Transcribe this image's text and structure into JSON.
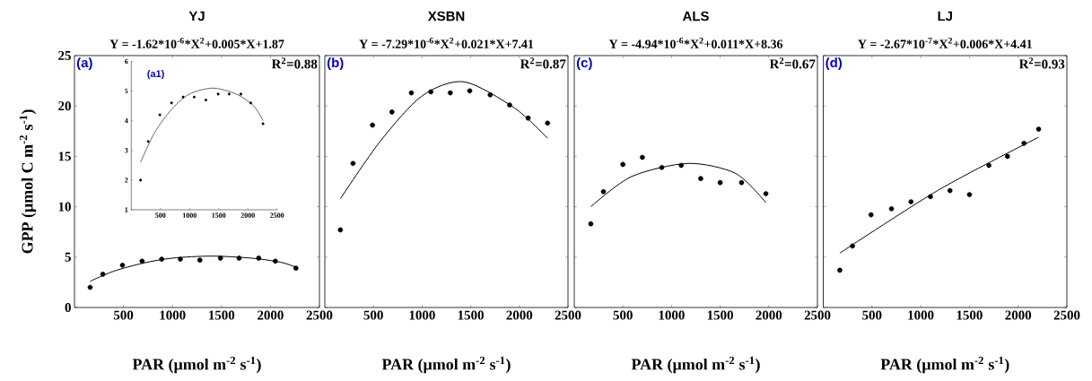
{
  "chart_data": [
    {
      "type": "scatter",
      "title": "YJ",
      "subtitle": "Y = -1.62*10$^{-6}$*X$^{2}$+0.005*X+1.87",
      "xlabel": "PAR (µmol m$^{-2}$ s$^{-1}$)",
      "ylabel": "GPP (µmol C m$^{-2}$ s$^{-1}$)",
      "annotations": [
        "(a)",
        "R$^{2}$=0.88"
      ],
      "marker": "circle",
      "xlim": [
        0,
        2500
      ],
      "ylim": [
        0,
        25
      ],
      "xticks": [
        500,
        1000,
        1500,
        2000,
        2500
      ],
      "yticks": [
        0,
        5,
        10,
        15,
        20,
        25
      ],
      "series": [
        {
          "type": "scatter",
          "color": "#000000",
          "x": [
            160,
            290,
            490,
            690,
            890,
            1080,
            1280,
            1490,
            1680,
            1880,
            2050,
            2260
          ],
          "values": [
            2.0,
            3.3,
            4.2,
            4.6,
            4.8,
            4.8,
            4.7,
            4.9,
            4.9,
            4.9,
            4.6,
            3.9
          ]
        },
        {
          "type": "line",
          "marker": "none",
          "color": "#000000",
          "x": [
            160,
            400,
            700,
            1000,
            1400,
            1800,
            2100,
            2260
          ],
          "values": [
            2.6,
            3.6,
            4.4,
            4.9,
            5.1,
            4.9,
            4.5,
            4.0
          ]
        }
      ]
    },
    {
      "type": "scatter",
      "annotations": [
        "(a1)"
      ],
      "marker": "circle",
      "xlim": [
        0,
        2500
      ],
      "ylim": [
        1,
        6
      ],
      "xticks": [
        500,
        1000,
        1500,
        2000,
        2500
      ],
      "yticks": [
        1,
        2,
        3,
        4,
        5,
        6
      ],
      "series": [
        {
          "type": "scatter",
          "color": "#000000",
          "x": [
            160,
            290,
            490,
            690,
            890,
            1080,
            1280,
            1490,
            1680,
            1880,
            2050,
            2260
          ],
          "values": [
            2.0,
            3.3,
            4.2,
            4.6,
            4.8,
            4.8,
            4.7,
            4.9,
            4.9,
            4.9,
            4.6,
            3.9
          ]
        },
        {
          "type": "line",
          "marker": "none",
          "color": "#000000",
          "x": [
            160,
            400,
            700,
            1000,
            1400,
            1800,
            2100,
            2260
          ],
          "values": [
            2.6,
            3.6,
            4.4,
            4.9,
            5.1,
            4.9,
            4.5,
            4.0
          ]
        }
      ]
    },
    {
      "type": "scatter",
      "title": "XSBN",
      "subtitle": "Y = -7.29*10$^{-6}$*X$^{2}$+0.021*X+7.41",
      "xlabel": "PAR (µmol m$^{-2}$ s$^{-1}$)",
      "annotations": [
        "(b)",
        "R$^{2}$=0.87"
      ],
      "marker": "circle",
      "xlim": [
        0,
        2500
      ],
      "ylim": [
        0,
        25
      ],
      "xticks": [
        500,
        1000,
        1500,
        2000,
        2500
      ],
      "yticks": [
        0,
        5,
        10,
        15,
        20,
        25
      ],
      "tick_labels": "x",
      "series": [
        {
          "type": "scatter",
          "color": "#000000",
          "x": [
            160,
            290,
            490,
            690,
            890,
            1090,
            1290,
            1490,
            1700,
            1900,
            2090,
            2290
          ],
          "values": [
            7.7,
            14.3,
            18.1,
            19.4,
            21.3,
            21.4,
            21.3,
            21.5,
            21.1,
            20.1,
            18.8,
            18.3
          ]
        },
        {
          "type": "line",
          "marker": "none",
          "color": "#000000",
          "x": [
            160,
            570,
            1000,
            1430,
            1950,
            2290
          ],
          "values": [
            10.8,
            16.5,
            21.0,
            22.4,
            19.8,
            16.8
          ]
        }
      ]
    },
    {
      "type": "scatter",
      "title": "ALS",
      "subtitle": "Y = -4.94*10$^{-6}$*X$^{2}$+0.011*X+8.36",
      "xlabel": "PAR (µmol m$^{-2}$ s$^{-1}$)",
      "annotations": [
        "(c)",
        "R$^{2}$=0.67"
      ],
      "marker": "circle",
      "xlim": [
        0,
        2500
      ],
      "ylim": [
        0,
        25
      ],
      "xticks": [
        500,
        1000,
        1500,
        2000,
        2500
      ],
      "yticks": [
        0,
        5,
        10,
        15,
        20,
        25
      ],
      "tick_labels": "x",
      "series": [
        {
          "type": "scatter",
          "color": "#000000",
          "x": [
            170,
            300,
            500,
            700,
            900,
            1100,
            1300,
            1500,
            1720,
            1970
          ],
          "values": [
            8.3,
            11.5,
            14.2,
            14.9,
            13.9,
            14.1,
            12.8,
            12.4,
            12.4,
            11.3
          ]
        },
        {
          "type": "line",
          "marker": "none",
          "color": "#000000",
          "x": [
            170,
            590,
            1170,
            1660,
            1970
          ],
          "values": [
            10.0,
            13.0,
            14.3,
            13.3,
            10.4
          ]
        }
      ]
    },
    {
      "type": "scatter",
      "title": "LJ",
      "subtitle": "Y = -2.67*10$^{-7}$*X$^{2}$+0.006*X+4.41",
      "xlabel": "PAR (µmol m$^{-2}$ s$^{-1}$)",
      "annotations": [
        "(d)",
        "R$^{2}$=0.93"
      ],
      "marker": "circle",
      "xlim": [
        0,
        2500
      ],
      "ylim": [
        0,
        25
      ],
      "xticks": [
        500,
        1000,
        1500,
        2000,
        2500
      ],
      "yticks": [
        0,
        5,
        10,
        15,
        20,
        25
      ],
      "tick_labels": "x",
      "series": [
        {
          "type": "scatter",
          "color": "#000000",
          "x": [
            170,
            300,
            490,
            700,
            900,
            1100,
            1300,
            1500,
            1700,
            1890,
            2060,
            2210
          ],
          "values": [
            3.7,
            6.1,
            9.2,
            9.8,
            10.5,
            11.0,
            11.6,
            11.2,
            14.1,
            15.0,
            16.3,
            17.7
          ]
        },
        {
          "type": "line",
          "marker": "none",
          "color": "#000000",
          "x": [
            170,
            1190,
            2210
          ],
          "values": [
            5.4,
            11.7,
            16.9
          ]
        }
      ]
    }
  ]
}
